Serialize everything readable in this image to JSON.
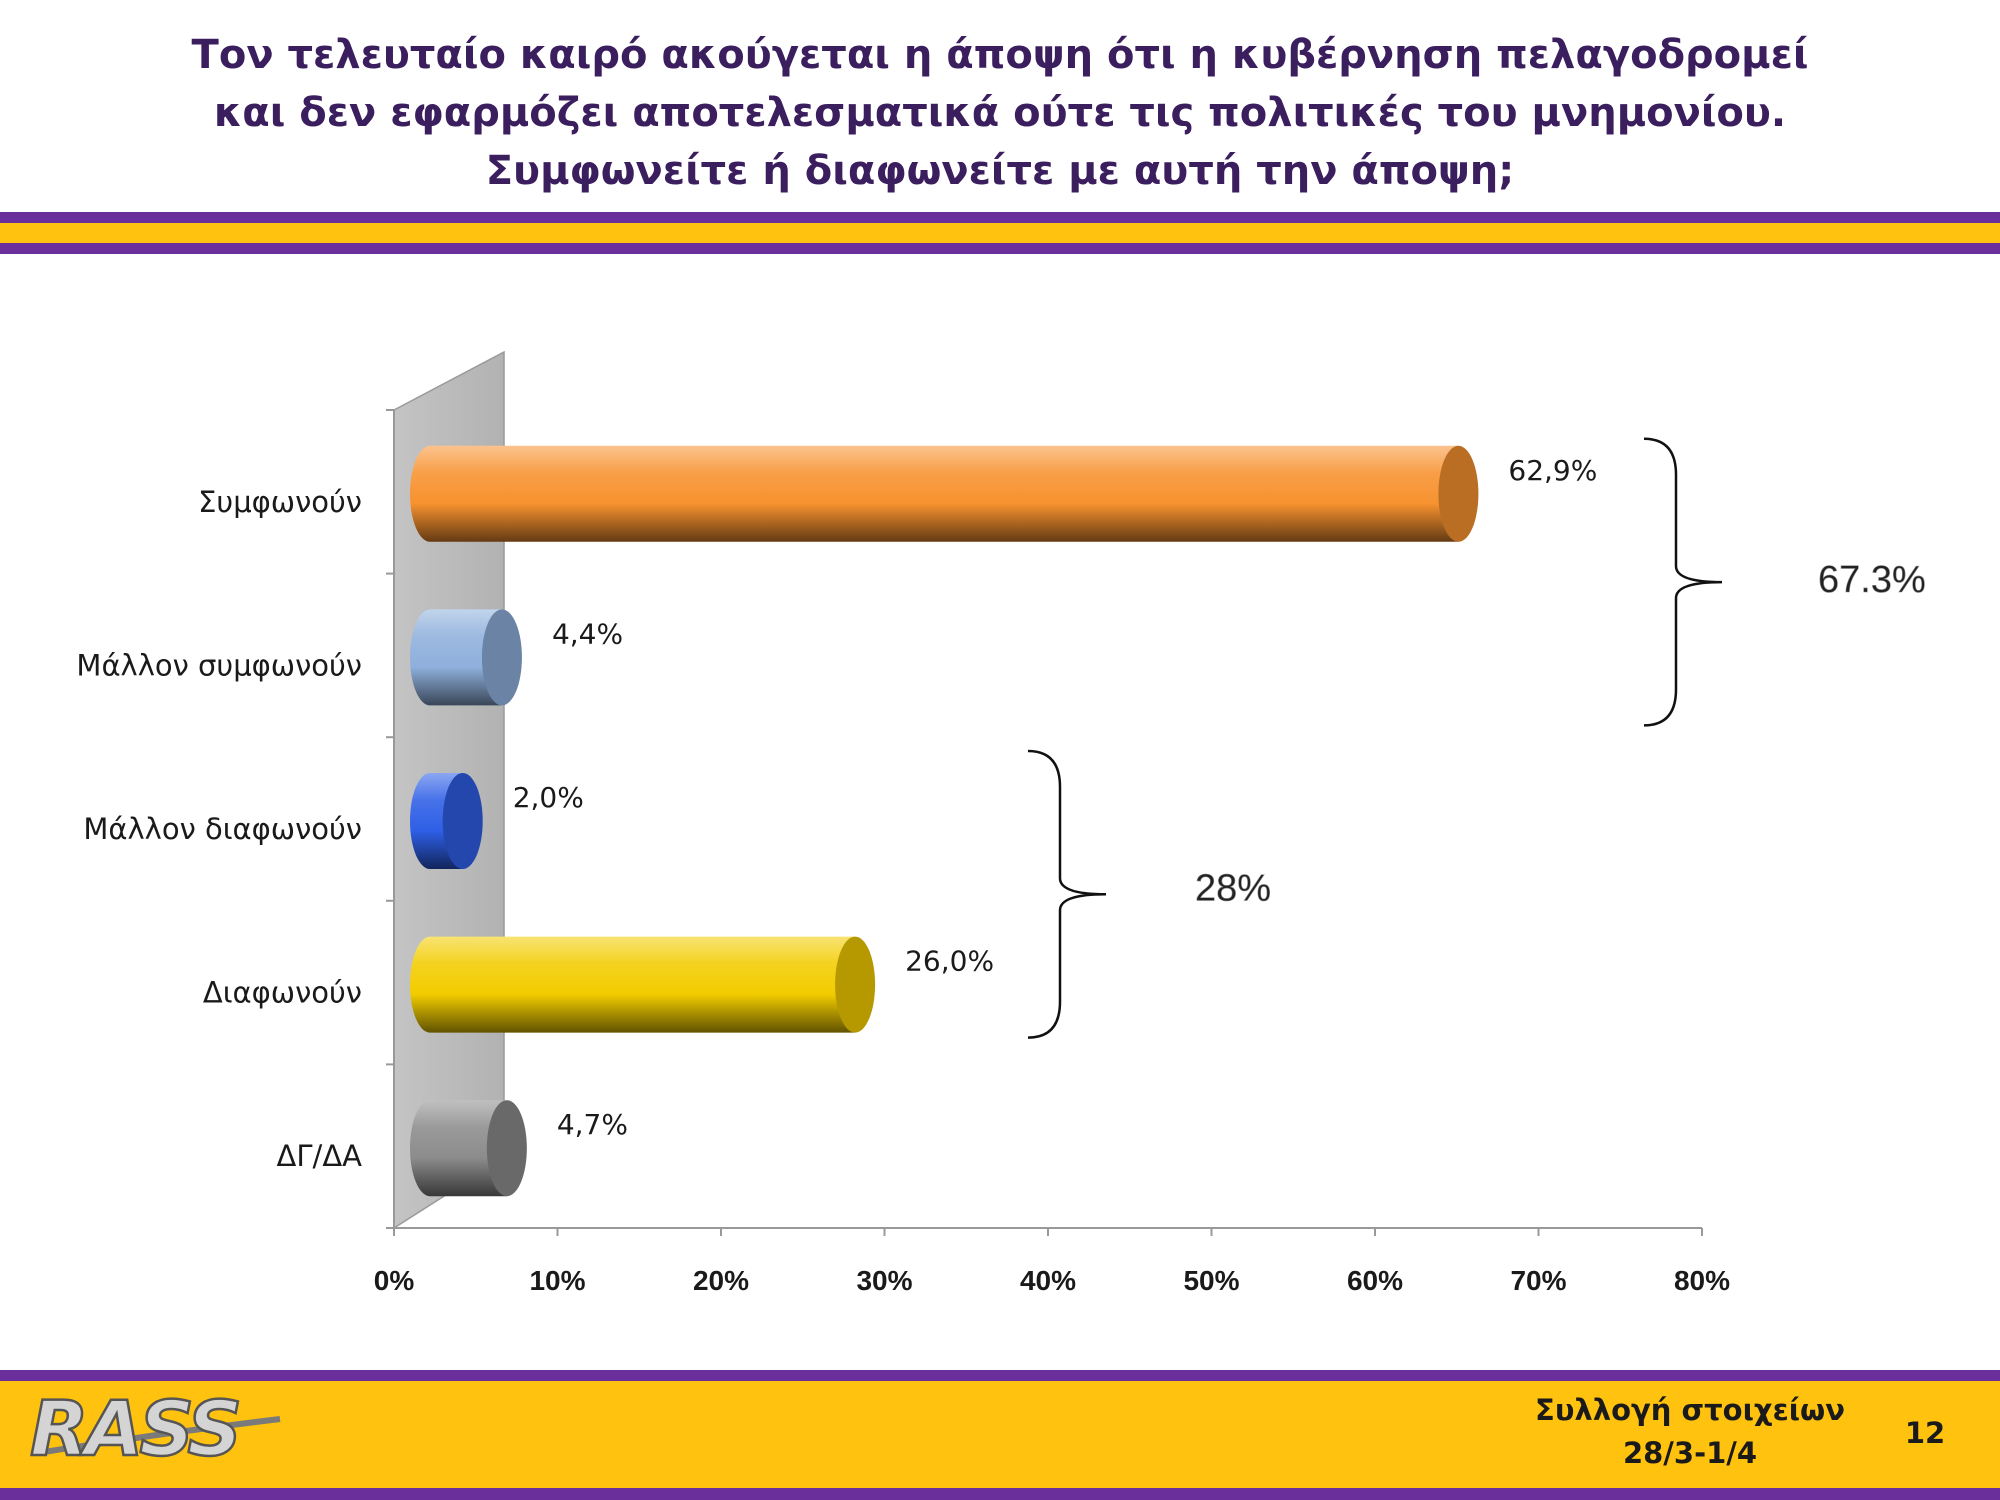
{
  "title_lines": [
    "Τον τελευταίο καιρό ακούγεται η άποψη ότι η κυβέρνηση πελαγοδρομεί",
    "και δεν εφαρμόζει αποτελεσματικά ούτε τις πολιτικές του μνημονίου.",
    "Συμφωνείτε ή διαφωνείτε με αυτή την άποψη;"
  ],
  "colors": {
    "purple": "#6a2f9a",
    "gold": "#ffc20e",
    "title": "#3b1e5e"
  },
  "chart_data": {
    "type": "bar",
    "orientation": "horizontal",
    "categories": [
      "Συμφωνούν",
      "Μάλλον συμφωνούν",
      "Μάλλον διαφωνούν",
      "Διαφωνούν",
      "ΔΓ/ΔΑ"
    ],
    "values": [
      62.9,
      4.4,
      2.0,
      26.0,
      4.7
    ],
    "value_labels": [
      "62,9%",
      "4,4%",
      "2,0%",
      "26,0%",
      "4,7%"
    ],
    "bar_colors": [
      "#f7922f",
      "#8fb0dc",
      "#2e5fe6",
      "#f2cc00",
      "#8c8c8c"
    ],
    "xlim": [
      0,
      80
    ],
    "xticks": [
      "0%",
      "10%",
      "20%",
      "30%",
      "40%",
      "50%",
      "60%",
      "70%",
      "80%"
    ],
    "grid": false,
    "legend": "none",
    "annotations": [
      {
        "text": "67.3%",
        "groups": [
          "Συμφωνούν",
          "Μάλλον συμφωνούν"
        ]
      },
      {
        "text": "28%",
        "groups": [
          "Μάλλον διαφωνούν",
          "Διαφωνούν"
        ]
      }
    ]
  },
  "footer": {
    "logo": "RASS",
    "collection_label": "Συλλογή στοιχείων",
    "collection_dates": "28/3-1/4",
    "page_number": "12"
  }
}
